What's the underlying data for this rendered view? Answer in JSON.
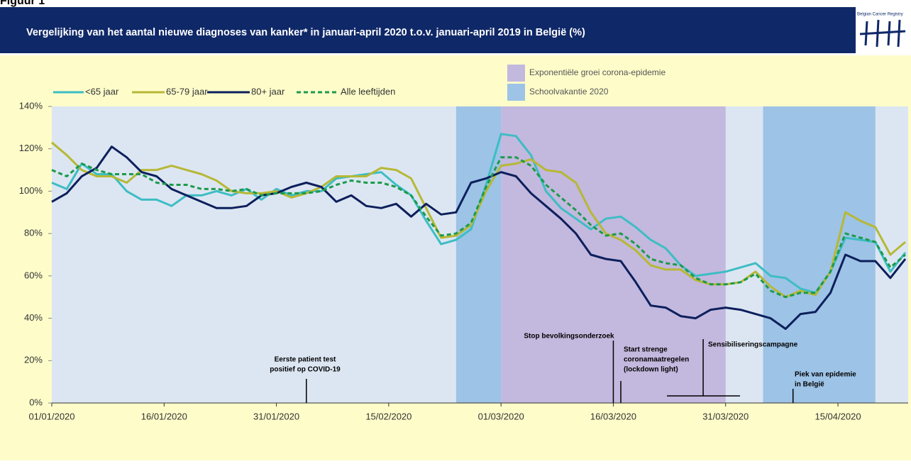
{
  "page_label": "Figuur 1",
  "logo_text": "Belgian Cancer Registry",
  "chart_data": {
    "type": "line",
    "title": "Vergelijking van het aantal nieuwe diagnoses van kanker* in januari-april 2020 t.o.v. januari-april  2019 in België (%)",
    "x": [
      "01/01/2020",
      "03/01/2020",
      "05/01/2020",
      "07/01/2020",
      "09/01/2020",
      "11/01/2020",
      "13/01/2020",
      "15/01/2020",
      "17/01/2020",
      "19/01/2020",
      "21/01/2020",
      "23/01/2020",
      "25/01/2020",
      "27/01/2020",
      "29/01/2020",
      "31/01/2020",
      "02/02/2020",
      "04/02/2020",
      "06/02/2020",
      "08/02/2020",
      "10/02/2020",
      "12/02/2020",
      "14/02/2020",
      "16/02/2020",
      "18/02/2020",
      "20/02/2020",
      "22/02/2020",
      "24/02/2020",
      "26/02/2020",
      "28/02/2020",
      "01/03/2020",
      "03/03/2020",
      "05/03/2020",
      "07/03/2020",
      "09/03/2020",
      "11/03/2020",
      "13/03/2020",
      "15/03/2020",
      "17/03/2020",
      "19/03/2020",
      "21/03/2020",
      "23/03/2020",
      "25/03/2020",
      "27/03/2020",
      "29/03/2020",
      "31/03/2020",
      "02/04/2020",
      "04/04/2020",
      "06/04/2020",
      "08/04/2020",
      "10/04/2020",
      "12/04/2020",
      "14/04/2020",
      "16/04/2020",
      "18/04/2020",
      "20/04/2020",
      "22/04/2020",
      "24/04/2020"
    ],
    "xlim": [
      "01/01/2020",
      "24/04/2020"
    ],
    "xticks": [
      "01/01/2020",
      "16/01/2020",
      "31/01/2020",
      "15/02/2020",
      "01/03/2020",
      "16/03/2020",
      "31/03/2020",
      "15/04/2020"
    ],
    "ylim": [
      0,
      140
    ],
    "yticks": [
      {
        "value": 0,
        "label": "0%"
      },
      {
        "value": 20,
        "label": "20%"
      },
      {
        "value": 40,
        "label": "40%"
      },
      {
        "value": 60,
        "label": "60%"
      },
      {
        "value": 80,
        "label": "80%"
      },
      {
        "value": 100,
        "label": "100%"
      },
      {
        "value": 120,
        "label": "120%"
      },
      {
        "value": 140,
        "label": "140%"
      }
    ],
    "grid": false,
    "series": [
      {
        "name": "<65 jaar",
        "color": "#3dbdc4",
        "linestyle": "solid",
        "values": [
          104,
          101,
          113,
          108,
          108,
          100,
          96,
          96,
          93,
          98,
          98,
          100,
          98,
          101,
          96,
          101,
          98,
          100,
          100,
          106,
          107,
          108,
          109,
          103,
          98,
          86,
          75,
          77,
          82,
          103,
          127,
          126,
          117,
          100,
          92,
          87,
          82,
          87,
          88,
          83,
          77,
          73,
          65,
          60,
          61,
          62,
          64,
          66,
          60,
          59,
          54,
          52,
          62,
          78,
          77,
          76,
          62,
          71
        ]
      },
      {
        "name": "65-79 jaar",
        "color": "#b6b835",
        "linestyle": "solid",
        "values": [
          123,
          117,
          110,
          107,
          107,
          104,
          110,
          110,
          112,
          110,
          108,
          105,
          100,
          99,
          99,
          100,
          97,
          99,
          102,
          107,
          107,
          107,
          111,
          110,
          106,
          92,
          78,
          79,
          84,
          100,
          112,
          113,
          115,
          110,
          109,
          104,
          90,
          80,
          77,
          72,
          65,
          63,
          63,
          58,
          56,
          56,
          57,
          62,
          55,
          50,
          53,
          51,
          62,
          90,
          86,
          83,
          70,
          76
        ]
      },
      {
        "name": "80+ jaar",
        "color": "#0d1f5c",
        "linestyle": "solid",
        "values": [
          95,
          99,
          107,
          111,
          121,
          116,
          109,
          107,
          101,
          98,
          95,
          92,
          92,
          93,
          98,
          99,
          102,
          104,
          102,
          95,
          98,
          93,
          92,
          94,
          88,
          94,
          89,
          90,
          104,
          106,
          109,
          107,
          99,
          93,
          87,
          80,
          70,
          68,
          67,
          57,
          46,
          45,
          41,
          40,
          44,
          45,
          44,
          42,
          40,
          35,
          42,
          43,
          52,
          70,
          67,
          67,
          59,
          68
        ]
      },
      {
        "name": "Alle leeftijden",
        "color": "#1c9a4b",
        "linestyle": "dashed",
        "values": [
          110,
          107,
          113,
          110,
          108,
          108,
          108,
          104,
          103,
          103,
          101,
          101,
          100,
          101,
          98,
          99,
          99,
          99,
          100,
          103,
          105,
          104,
          104,
          102,
          98,
          88,
          79,
          80,
          85,
          102,
          116,
          116,
          112,
          103,
          97,
          91,
          84,
          79,
          80,
          75,
          68,
          66,
          65,
          59,
          56,
          56,
          57,
          61,
          53,
          50,
          52,
          52,
          62,
          80,
          78,
          76,
          64,
          70
        ]
      }
    ],
    "regions": [
      {
        "name": "Exponentiële groei corona-epidemie",
        "color": "#c3b8de",
        "spans": [
          [
            "01/03/2020",
            "31/03/2020"
          ]
        ]
      },
      {
        "name": "Schoolvakantie 2020",
        "color": "#9dc3e6",
        "spans": [
          [
            "24/02/2020",
            "01/03/2020"
          ],
          [
            "05/04/2020",
            "20/04/2020"
          ]
        ]
      }
    ],
    "annotations": [
      {
        "x": "04/02/2020",
        "text": [
          "Eerste patient test",
          "positief op COVID-19"
        ]
      },
      {
        "x": "16/03/2020",
        "text": [
          "Stop bevolkingsonderzoek"
        ]
      },
      {
        "x": "17/03/2020",
        "text": [
          "Start strenge",
          "coronamaatregelen",
          "(lockdown  light)"
        ]
      },
      {
        "x": "28/03/2020",
        "text": [
          "Sensibiliseringscampagne"
        ]
      },
      {
        "x": "09/04/2020",
        "text": [
          "Piek van  epidemie",
          "in België"
        ]
      }
    ]
  }
}
